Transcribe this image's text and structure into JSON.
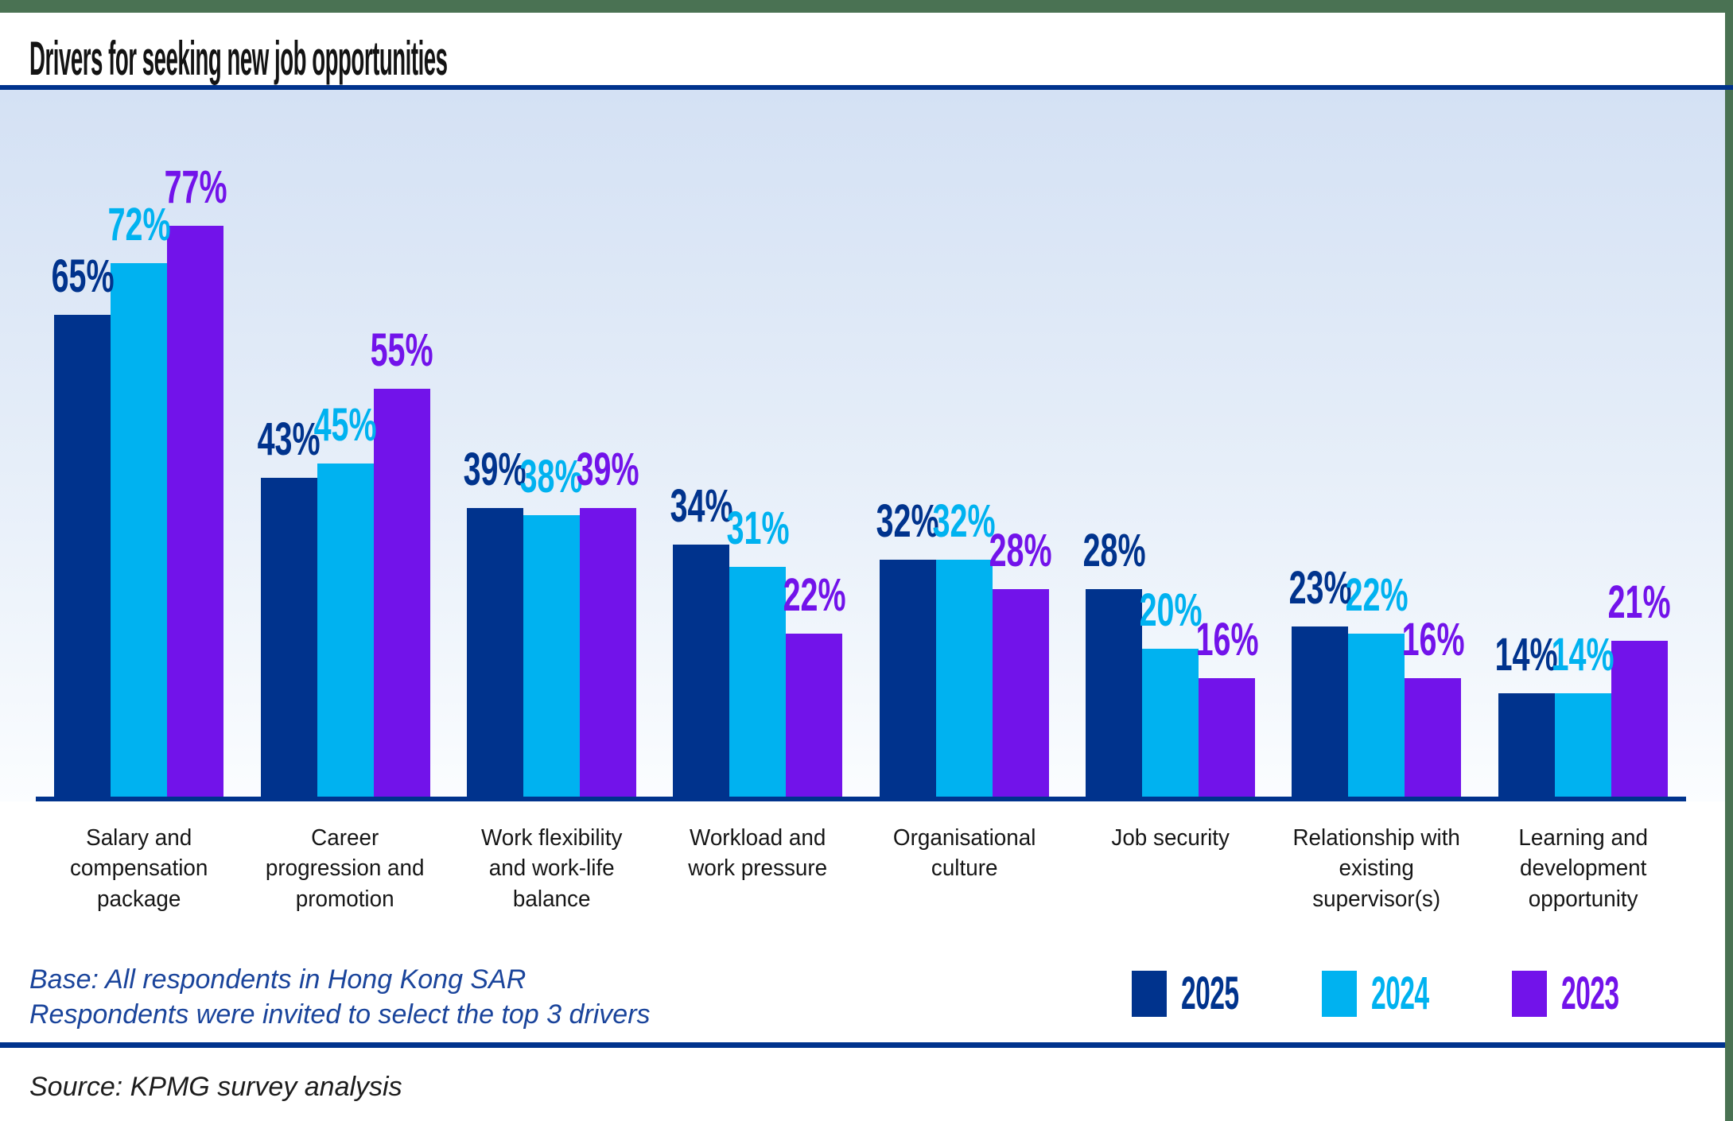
{
  "header": {
    "title": "Drivers for seeking new job opportunities"
  },
  "chart_data": {
    "type": "bar",
    "title": "Drivers for seeking new job opportunities",
    "categories": [
      "Salary and compensation package",
      "Career progression and promotion",
      "Work flexibility and work-life balance",
      "Workload and work pressure",
      "Organisational culture",
      "Job security",
      "Relationship with existing supervisor(s)",
      "Learning and development opportunity"
    ],
    "series": [
      {
        "name": "2025",
        "color": "#00338d",
        "values": [
          65,
          43,
          39,
          34,
          32,
          28,
          23,
          14
        ]
      },
      {
        "name": "2024",
        "color": "#00b2f0",
        "values": [
          72,
          45,
          38,
          31,
          32,
          20,
          22,
          14
        ]
      },
      {
        "name": "2023",
        "color": "#7213ea",
        "values": [
          77,
          55,
          39,
          22,
          28,
          16,
          16,
          21
        ]
      }
    ],
    "value_suffix": "%",
    "ylim": [
      0,
      95
    ],
    "grid": false,
    "legend_position": "bottom-right",
    "data_labels": true
  },
  "footnote": {
    "line1": "Base: All respondents in Hong Kong SAR",
    "line2": "Respondents were invited to select the top 3 drivers"
  },
  "source": {
    "text": "Source: KPMG survey analysis"
  },
  "colors": {
    "accent_green": "#4a7253",
    "rule_navy": "#00338d",
    "footnote_blue": "#1a449b",
    "series_2025": "#00338d",
    "series_2024": "#00b2f0",
    "series_2023": "#7213ea"
  }
}
